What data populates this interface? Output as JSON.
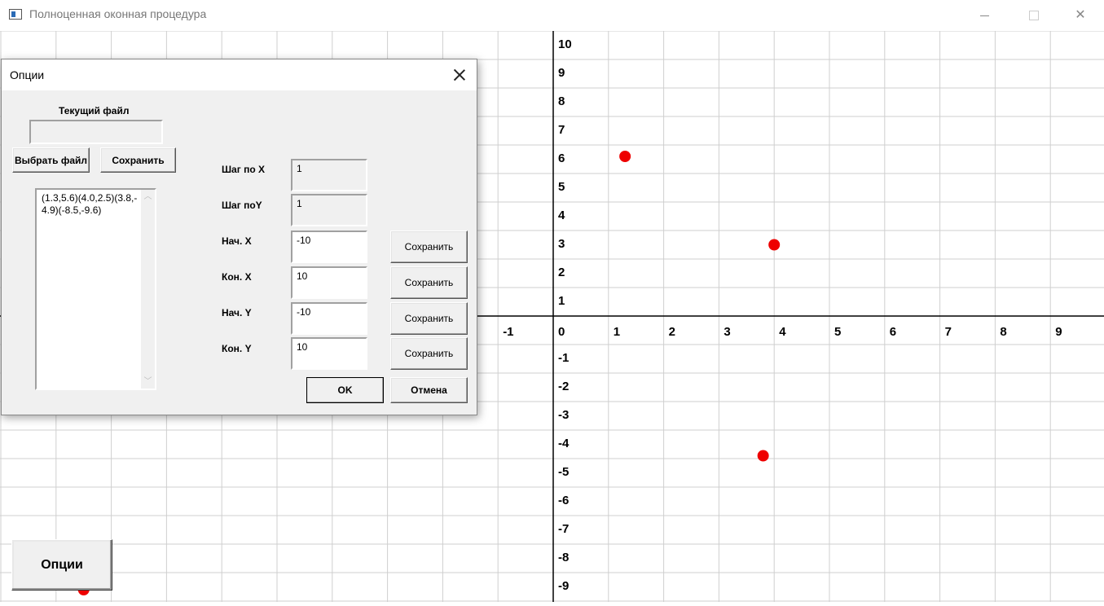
{
  "window": {
    "title": "Полноценная оконная процедура"
  },
  "graph": {
    "x_tick_labels": [
      "-1",
      "0",
      "1",
      "2",
      "3",
      "4",
      "5",
      "6",
      "7",
      "8",
      "9"
    ],
    "y_tick_labels": [
      "10",
      "9",
      "8",
      "7",
      "6",
      "5",
      "4",
      "3",
      "2",
      "1",
      "-1",
      "-2",
      "-3",
      "-4",
      "-5",
      "-6",
      "-7",
      "-8",
      "-9"
    ],
    "point_color": "#ee0000"
  },
  "chart_data": {
    "type": "scatter",
    "x_tick_labels": [
      "-1",
      "0",
      "1",
      "2",
      "3",
      "4",
      "5",
      "6",
      "7",
      "8",
      "9"
    ],
    "y_tick_labels": [
      "10",
      "9",
      "8",
      "7",
      "6",
      "5",
      "4",
      "3",
      "2",
      "1",
      "-1",
      "-2",
      "-3",
      "-4",
      "-5",
      "-6",
      "-7",
      "-8",
      "-9"
    ],
    "xlim": [
      -10,
      10
    ],
    "ylim": [
      -10,
      10
    ],
    "grid": true,
    "points": [
      {
        "x": 1.3,
        "y": 5.6
      },
      {
        "x": 4.0,
        "y": 2.5
      },
      {
        "x": 3.8,
        "y": -4.9
      },
      {
        "x": -8.5,
        "y": -9.6
      }
    ]
  },
  "dialog": {
    "title": "Опции",
    "current_file_label": "Текущий файл",
    "current_file_value": "",
    "choose_file_button": "Выбрать файл",
    "save_file_button": "Сохранить",
    "points_text": "(1.3,5.6)(4.0,2.5)(3.8,-4.9)(-8.5,-9.6)",
    "fields": [
      {
        "label": "Шаг по X",
        "value": "1"
      },
      {
        "label": "Шаг поY",
        "value": "1"
      },
      {
        "label": "Нач. X",
        "value": "-10",
        "save": "Сохранить"
      },
      {
        "label": "Кон. X",
        "value": "10",
        "save": "Сохранить"
      },
      {
        "label": "Нач. Y",
        "value": "-10",
        "save": "Сохранить"
      },
      {
        "label": "Кон. Y",
        "value": "10",
        "save": "Сохранить"
      }
    ],
    "ok_button": "OK",
    "cancel_button": "Отмена"
  },
  "options_button": "Опции"
}
